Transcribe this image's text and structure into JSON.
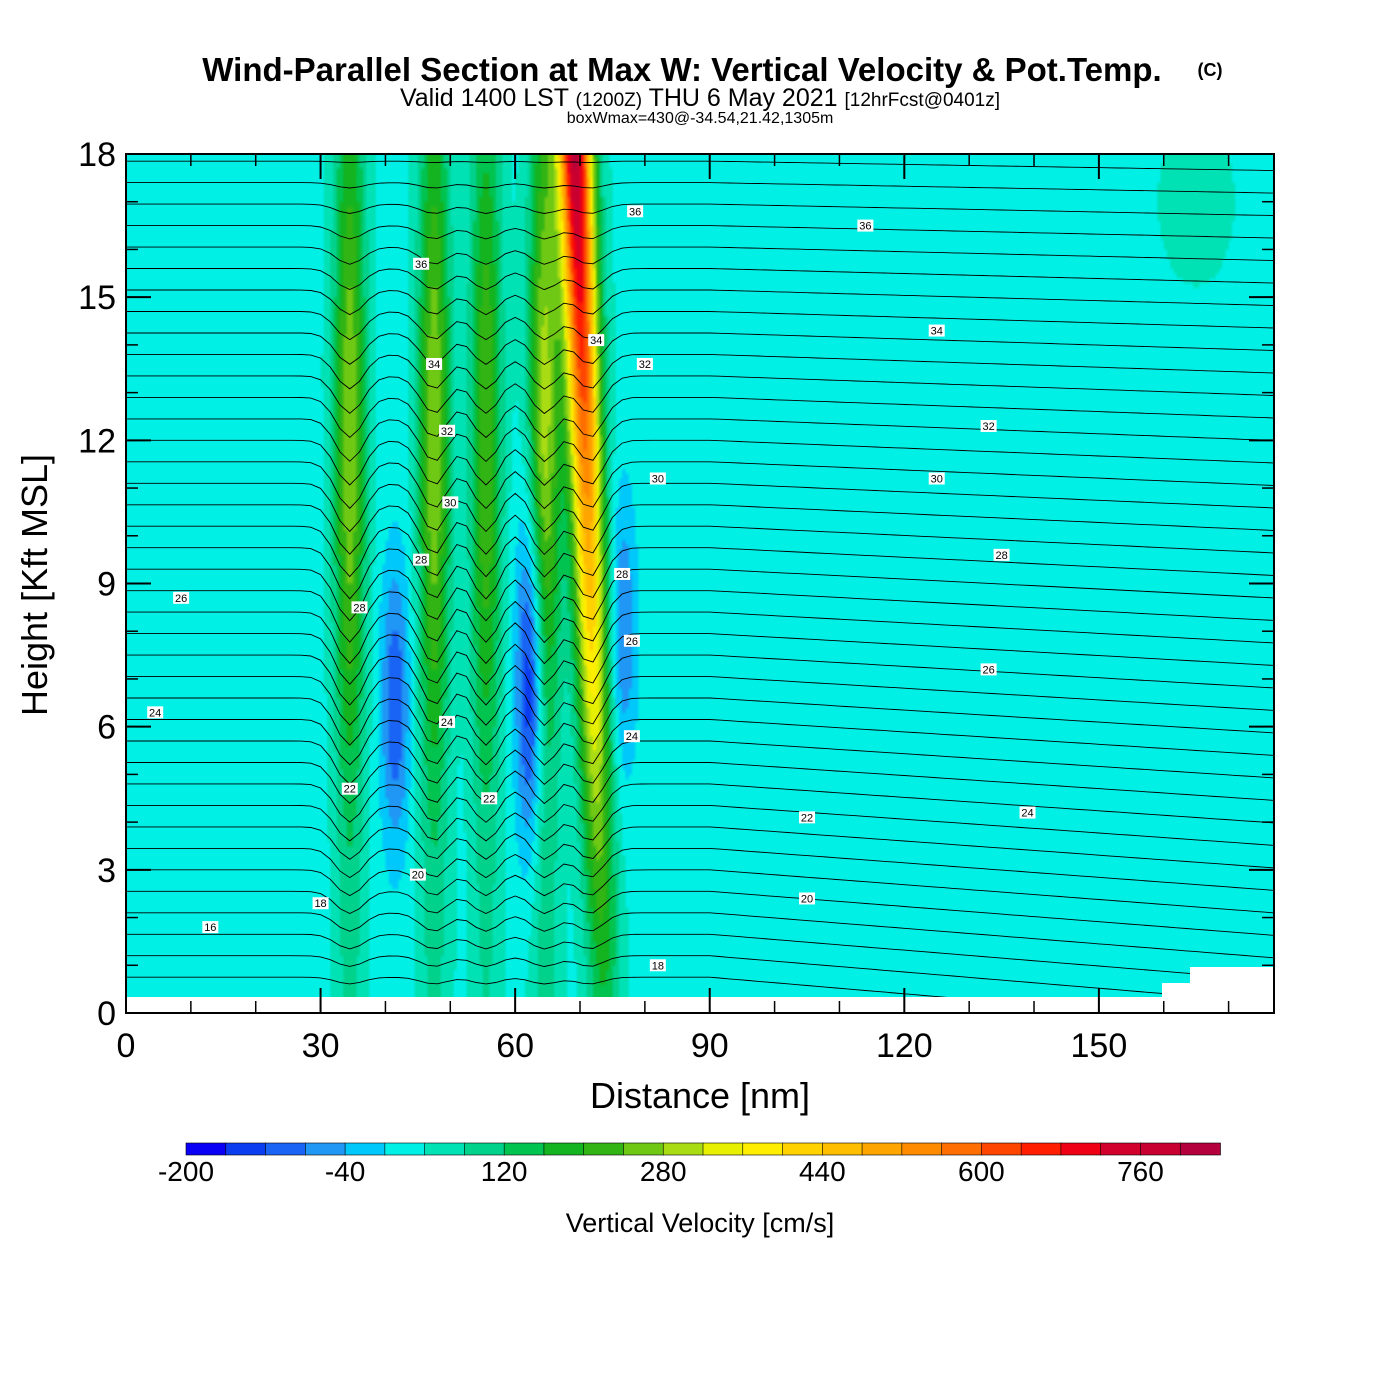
{
  "chart_data": {
    "type": "heatmap",
    "title": "Wind-Parallel Section at Max W: Vertical Velocity & Pot.Temp.",
    "copyright_mark": "(C)",
    "subtitle": {
      "valid_prefix": "Valid 1400 LST",
      "utc": "(1200Z)",
      "date": "THU 6 May 2021",
      "forecast": "[12hrFcst@0401z]"
    },
    "box_info": "boxWmax=430@-34.54,21.42,1305m",
    "xlabel": "Distance [nm]",
    "ylabel": "Height [Kft MSL]",
    "xlim": [
      0,
      177
    ],
    "ylim": [
      0,
      18
    ],
    "x_ticks": [
      "0",
      "30",
      "60",
      "90",
      "120",
      "150"
    ],
    "x_tick_values": [
      0,
      30,
      60,
      90,
      120,
      150
    ],
    "y_ticks": [
      "0",
      "3",
      "6",
      "9",
      "12",
      "15",
      "18"
    ],
    "y_tick_values": [
      0,
      3,
      6,
      9,
      12,
      15,
      18
    ],
    "colorbar": {
      "label": "Vertical Velocity [cm/s]",
      "tick_labels": [
        "-200",
        "-40",
        "120",
        "280",
        "440",
        "600",
        "760"
      ],
      "tick_values": [
        -200,
        -40,
        120,
        280,
        440,
        600,
        760
      ],
      "min": -200,
      "max": 840,
      "step": 40,
      "colors": [
        "#0a00f5",
        "#0a3cf0",
        "#1a64f5",
        "#2096f5",
        "#00c8fa",
        "#00f0e6",
        "#00e1b4",
        "#00d28c",
        "#00c350",
        "#14b420",
        "#32b414",
        "#6ec814",
        "#aadc14",
        "#e6f000",
        "#ffee00",
        "#ffd200",
        "#ffbe00",
        "#ffa500",
        "#ff8c00",
        "#ff6e00",
        "#ff4600",
        "#ff1e00",
        "#f00014",
        "#d2002d",
        "#c80032",
        "#b4003c"
      ]
    },
    "updrafts": [
      {
        "center_x": 34.5,
        "peak_w": 230
      },
      {
        "center_x": 47.5,
        "peak_w": 230
      },
      {
        "center_x": 55.5,
        "peak_w": 200
      },
      {
        "center_x": 64.5,
        "peak_w": 250
      },
      {
        "center_x": 71.5,
        "peak_w": 810
      }
    ],
    "downdrafts": [
      {
        "center_x": 41.5,
        "peak_w": -110
      },
      {
        "center_x": 62.5,
        "peak_w": -200
      },
      {
        "center_x": 76.5,
        "peak_w": -80
      }
    ],
    "theta_contours": [
      {
        "label": "16",
        "x": 13,
        "y": 1.8
      },
      {
        "label": "18",
        "x": 30,
        "y": 2.3
      },
      {
        "label": "20",
        "x": 45,
        "y": 2.9
      },
      {
        "label": "22",
        "x": 34.5,
        "y": 4.7
      },
      {
        "label": "22",
        "x": 56,
        "y": 4.5
      },
      {
        "label": "24",
        "x": 4.5,
        "y": 6.3
      },
      {
        "label": "24",
        "x": 49.5,
        "y": 6.1
      },
      {
        "label": "24",
        "x": 78,
        "y": 5.8
      },
      {
        "label": "26",
        "x": 8.5,
        "y": 8.7
      },
      {
        "label": "26",
        "x": 78,
        "y": 7.8
      },
      {
        "label": "28",
        "x": 36,
        "y": 8.5
      },
      {
        "label": "28",
        "x": 45.5,
        "y": 9.5
      },
      {
        "label": "28",
        "x": 76.5,
        "y": 9.2
      },
      {
        "label": "30",
        "x": 50,
        "y": 10.7
      },
      {
        "label": "30",
        "x": 82,
        "y": 11.2
      },
      {
        "label": "32",
        "x": 49.5,
        "y": 12.2
      },
      {
        "label": "32",
        "x": 80,
        "y": 13.6
      },
      {
        "label": "34",
        "x": 47.5,
        "y": 13.6
      },
      {
        "label": "34",
        "x": 72.5,
        "y": 14.1
      },
      {
        "label": "36",
        "x": 45.5,
        "y": 15.7
      },
      {
        "label": "36",
        "x": 78.5,
        "y": 16.8
      },
      {
        "label": "22",
        "x": 105,
        "y": 4.1
      },
      {
        "label": "20",
        "x": 105,
        "y": 2.4
      },
      {
        "label": "18",
        "x": 82,
        "y": 1.0
      },
      {
        "label": "36",
        "x": 114,
        "y": 16.5
      },
      {
        "label": "34",
        "x": 125,
        "y": 14.3
      },
      {
        "label": "32",
        "x": 133,
        "y": 12.3
      },
      {
        "label": "30",
        "x": 125,
        "y": 11.2
      },
      {
        "label": "28",
        "x": 135,
        "y": 9.6
      },
      {
        "label": "26",
        "x": 133,
        "y": 7.2
      },
      {
        "label": "24",
        "x": 139,
        "y": 4.2
      }
    ]
  }
}
